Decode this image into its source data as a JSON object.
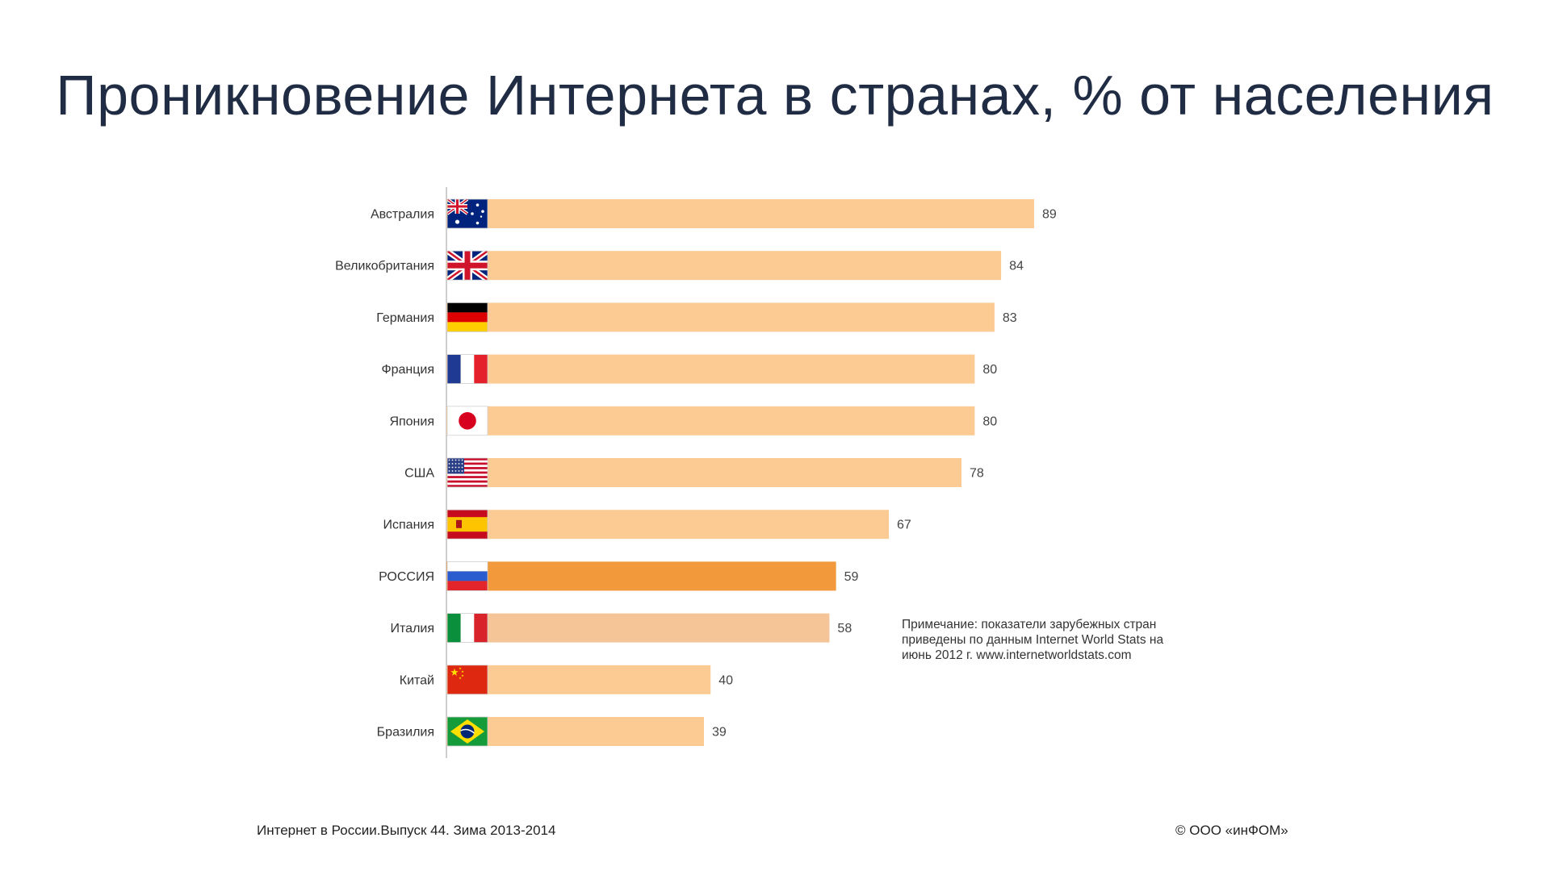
{
  "slide": {
    "title": "Проникновение Интернета в странах, % от населения",
    "note": "Примечание: показатели зарубежных стран приведены по данным Internet World Stats на июнь 2012 г. www.internetworldstats.com",
    "footer_left": "Интернет в России.Выпуск 44. Зима 2013-2014",
    "footer_right": "© ООО «инФОМ»"
  },
  "chart_data": {
    "type": "bar",
    "orientation": "horizontal",
    "title": "Проникновение Интернета в странах, % от населения",
    "xlabel": "",
    "ylabel": "",
    "xlim": [
      0,
      100
    ],
    "grid": false,
    "categories": [
      "Австралия",
      "Великобритания",
      "Германия",
      "Франция",
      "Япония",
      "США",
      "Испания",
      "РОССИЯ",
      "Италия",
      "Китай",
      "Бразилия"
    ],
    "values": [
      89,
      84,
      83,
      80,
      80,
      78,
      67,
      59,
      58,
      40,
      39
    ],
    "flags": [
      "australia-flag",
      "uk-flag",
      "germany-flag",
      "france-flag",
      "japan-flag",
      "usa-flag",
      "spain-flag",
      "russia-flag",
      "italy-flag",
      "china-flag",
      "brazil-flag"
    ],
    "colors": {
      "default": "#fccb94",
      "highlight": "#f1993b",
      "italy": "#f6c597"
    },
    "bar_colors": [
      "#fccb94",
      "#fccb94",
      "#fccb94",
      "#fccb94",
      "#fccb94",
      "#fccb94",
      "#fccb94",
      "#f1993b",
      "#f6c597",
      "#fccb94",
      "#fccb94"
    ]
  }
}
